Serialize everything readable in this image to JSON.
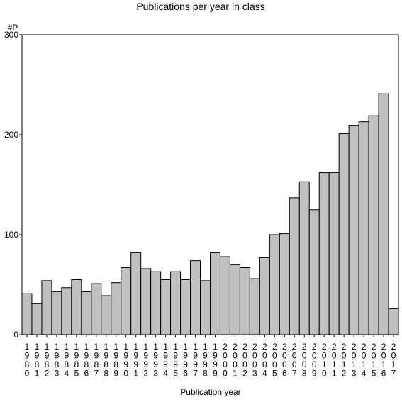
{
  "chart_data": {
    "type": "bar",
    "title": "Publications per year in class",
    "xlabel": "Publication year",
    "ylabel": "#P",
    "ylim": [
      0,
      300
    ],
    "yticks": [
      0,
      100,
      200,
      300
    ],
    "grid": false,
    "bar_color": "#c0c0c0",
    "bar_edge_color": "#000000",
    "categories": [
      "1980",
      "1981",
      "1982",
      "1983",
      "1984",
      "1985",
      "1986",
      "1987",
      "1988",
      "1989",
      "1990",
      "1991",
      "1992",
      "1993",
      "1994",
      "1995",
      "1996",
      "1997",
      "1998",
      "1999",
      "2000",
      "2001",
      "2002",
      "2003",
      "2004",
      "2005",
      "2006",
      "2007",
      "2008",
      "2009",
      "2010",
      "2011",
      "2012",
      "2013",
      "2014",
      "2015",
      "2016",
      "2017"
    ],
    "values": [
      41,
      31,
      54,
      43,
      47,
      55,
      43,
      51,
      39,
      52,
      67,
      82,
      66,
      63,
      55,
      63,
      55,
      74,
      54,
      82,
      78,
      70,
      67,
      56,
      77,
      100,
      101,
      137,
      153,
      125,
      162,
      162,
      201,
      209,
      213,
      219,
      241,
      26
    ]
  }
}
